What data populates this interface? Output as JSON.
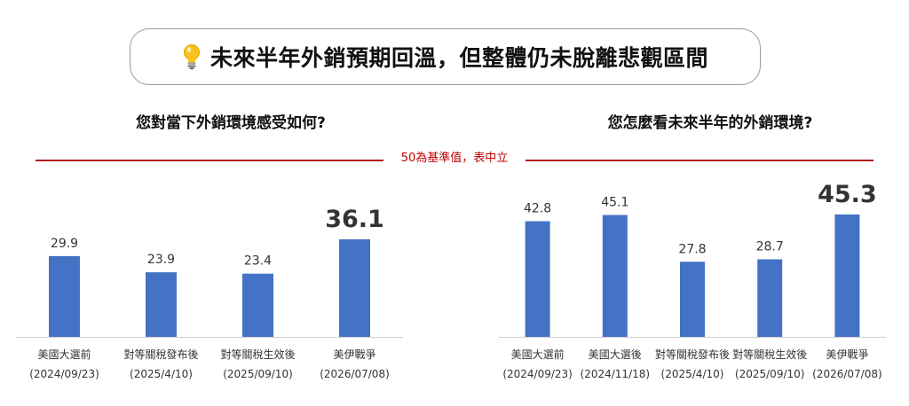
{
  "header": {
    "title": "未來半年外銷預期回溫，但整體仍未脫離悲觀區間",
    "icon": "lightbulb-icon"
  },
  "baseline": {
    "label": "50為基準值，表中立",
    "value": 50,
    "color": "#b01c1c"
  },
  "colors": {
    "bar": "#4472c4"
  },
  "chart_data": [
    {
      "type": "bar",
      "title": "您對當下外銷環境感受如何?",
      "categories": [
        [
          "美國大選前",
          "(2024/09/23)"
        ],
        [
          "對等關稅發布後",
          "(2025/4/10)"
        ],
        [
          "對等關稅生效後",
          "(2025/09/10)"
        ],
        [
          "美伊戰爭",
          "(2026/07/08)"
        ]
      ],
      "values": [
        29.9,
        23.9,
        23.4,
        36.1
      ],
      "highlight_index": 3,
      "ylim": [
        0,
        50
      ]
    },
    {
      "type": "bar",
      "title": "您怎麼看未來半年的外銷環境?",
      "categories": [
        [
          "美國大選前",
          "(2024/09/23)"
        ],
        [
          "美國大選後",
          "(2024/11/18)"
        ],
        [
          "對等關稅發布後",
          "(2025/4/10)"
        ],
        [
          "對等關稅生效後",
          "(2025/09/10)"
        ],
        [
          "美伊戰爭",
          "(2026/07/08)"
        ]
      ],
      "values": [
        42.8,
        45.1,
        27.8,
        28.7,
        45.3
      ],
      "highlight_index": 4,
      "ylim": [
        0,
        50
      ]
    }
  ]
}
